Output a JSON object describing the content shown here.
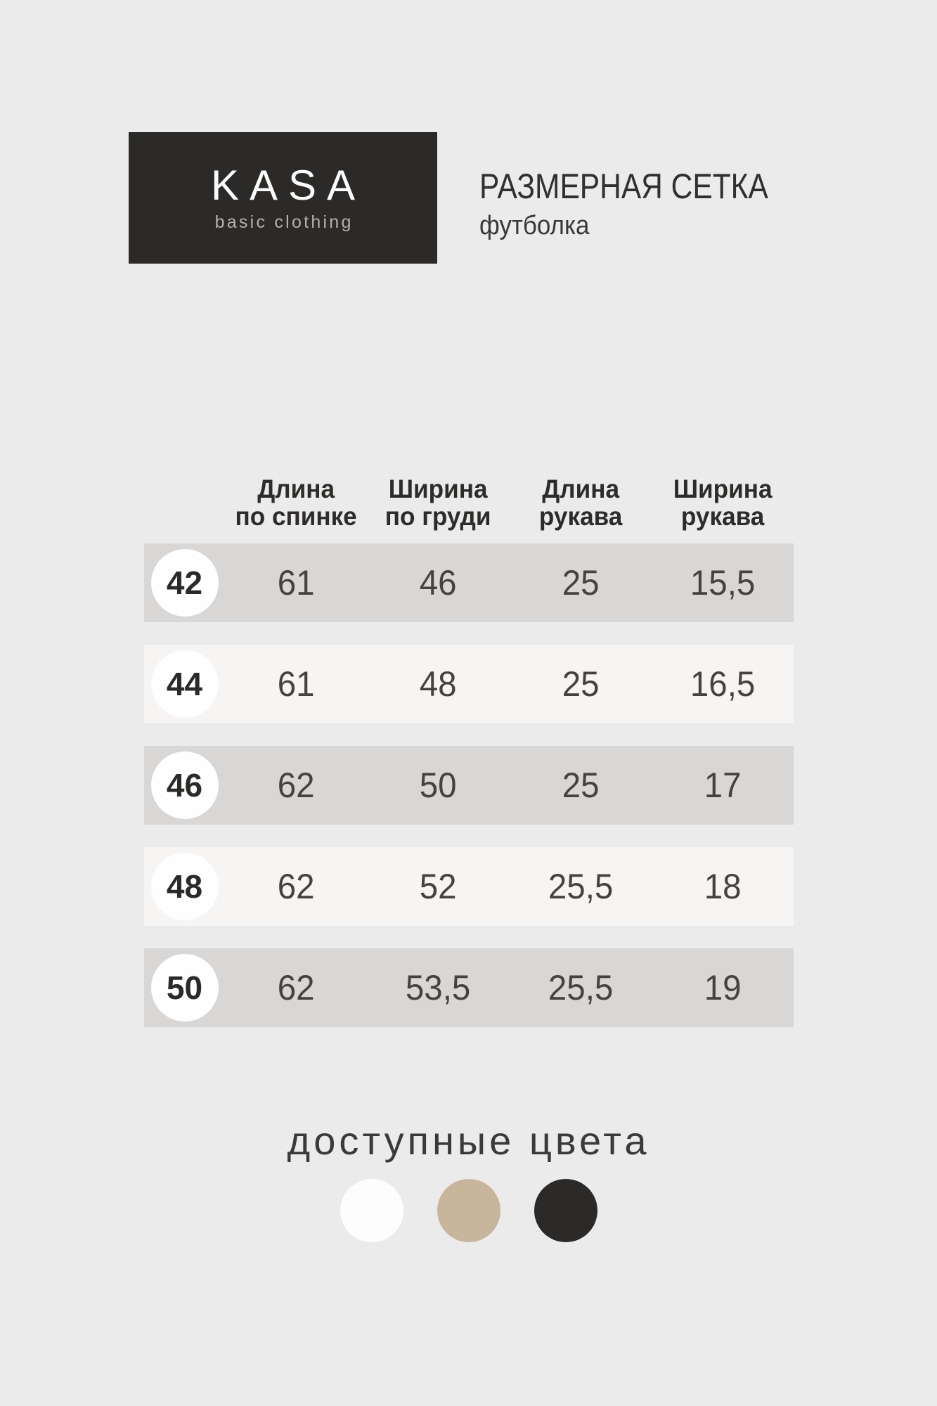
{
  "logo": {
    "name": "KASA",
    "tagline": "basic clothing",
    "block_color": "#2b2a28"
  },
  "header": {
    "title": "РАЗМЕРНАЯ СЕТКА",
    "subtitle": "футболка"
  },
  "table": {
    "headers": [
      {
        "line1": "Длина",
        "line2": "по спинке"
      },
      {
        "line1": "Ширина",
        "line2": "по груди"
      },
      {
        "line1": "Длина",
        "line2": "рукава"
      },
      {
        "line1": "Ширина",
        "line2": "рукава"
      }
    ],
    "rows": [
      {
        "size": "42",
        "values": [
          "61",
          "46",
          "25",
          "15,5"
        ]
      },
      {
        "size": "44",
        "values": [
          "61",
          "48",
          "25",
          "16,5"
        ]
      },
      {
        "size": "46",
        "values": [
          "62",
          "50",
          "25",
          "17"
        ]
      },
      {
        "size": "48",
        "values": [
          "62",
          "52",
          "25,5",
          "18"
        ]
      },
      {
        "size": "50",
        "values": [
          "62",
          "53,5",
          "25,5",
          "19"
        ]
      }
    ]
  },
  "colors_section": {
    "label": "доступные цвета",
    "swatches": [
      {
        "name": "white",
        "hex": "#fdfdfd"
      },
      {
        "name": "beige",
        "hex": "#c8b69c"
      },
      {
        "name": "black",
        "hex": "#2b2a28"
      }
    ]
  }
}
